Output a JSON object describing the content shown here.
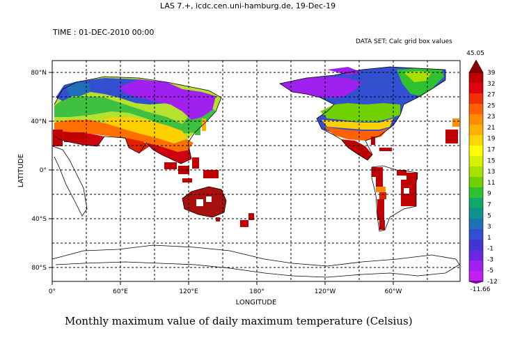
{
  "header": {
    "server_line": "LAS 7.+, icdc.cen.uni-hamburg.de, 19-Dec-19",
    "time_label": "TIME : 01-DEC-2010 00:00",
    "dataset_label": "DATA SET: Calc grid box values"
  },
  "axes": {
    "y_title": "LATITUDE",
    "x_title": "LONGITUDE",
    "lat_ticks": [
      "80°N",
      "40°N",
      "0°",
      "40°S",
      "80°S"
    ],
    "lon_ticks": [
      "0°",
      "60°E",
      "120°E",
      "180°",
      "120°W",
      "60°W"
    ]
  },
  "colorbar": {
    "max_label": "45.05",
    "min_label": "-11.66",
    "ticks": [
      "39",
      "32",
      "27",
      "25",
      "23",
      "21",
      "19",
      "17",
      "15",
      "13",
      "11",
      "9",
      "7",
      "5",
      "3",
      "1",
      "-1",
      "-3",
      "-5",
      "-12"
    ],
    "colors": [
      "#c00000",
      "#e00010",
      "#f03000",
      "#ff6000",
      "#ff8c00",
      "#ffb000",
      "#ffd700",
      "#ffff00",
      "#d7f000",
      "#a8e000",
      "#70d000",
      "#30c030",
      "#10a868",
      "#109090",
      "#2070b8",
      "#3050d0",
      "#4035d0",
      "#6a28e0",
      "#a020f0",
      "#c020f0"
    ],
    "arrow_top_color": "#8b0000",
    "arrow_bottom_color": "#9400d3"
  },
  "caption": "Monthly maximum value of daily maximum temperature (Celsius)"
}
